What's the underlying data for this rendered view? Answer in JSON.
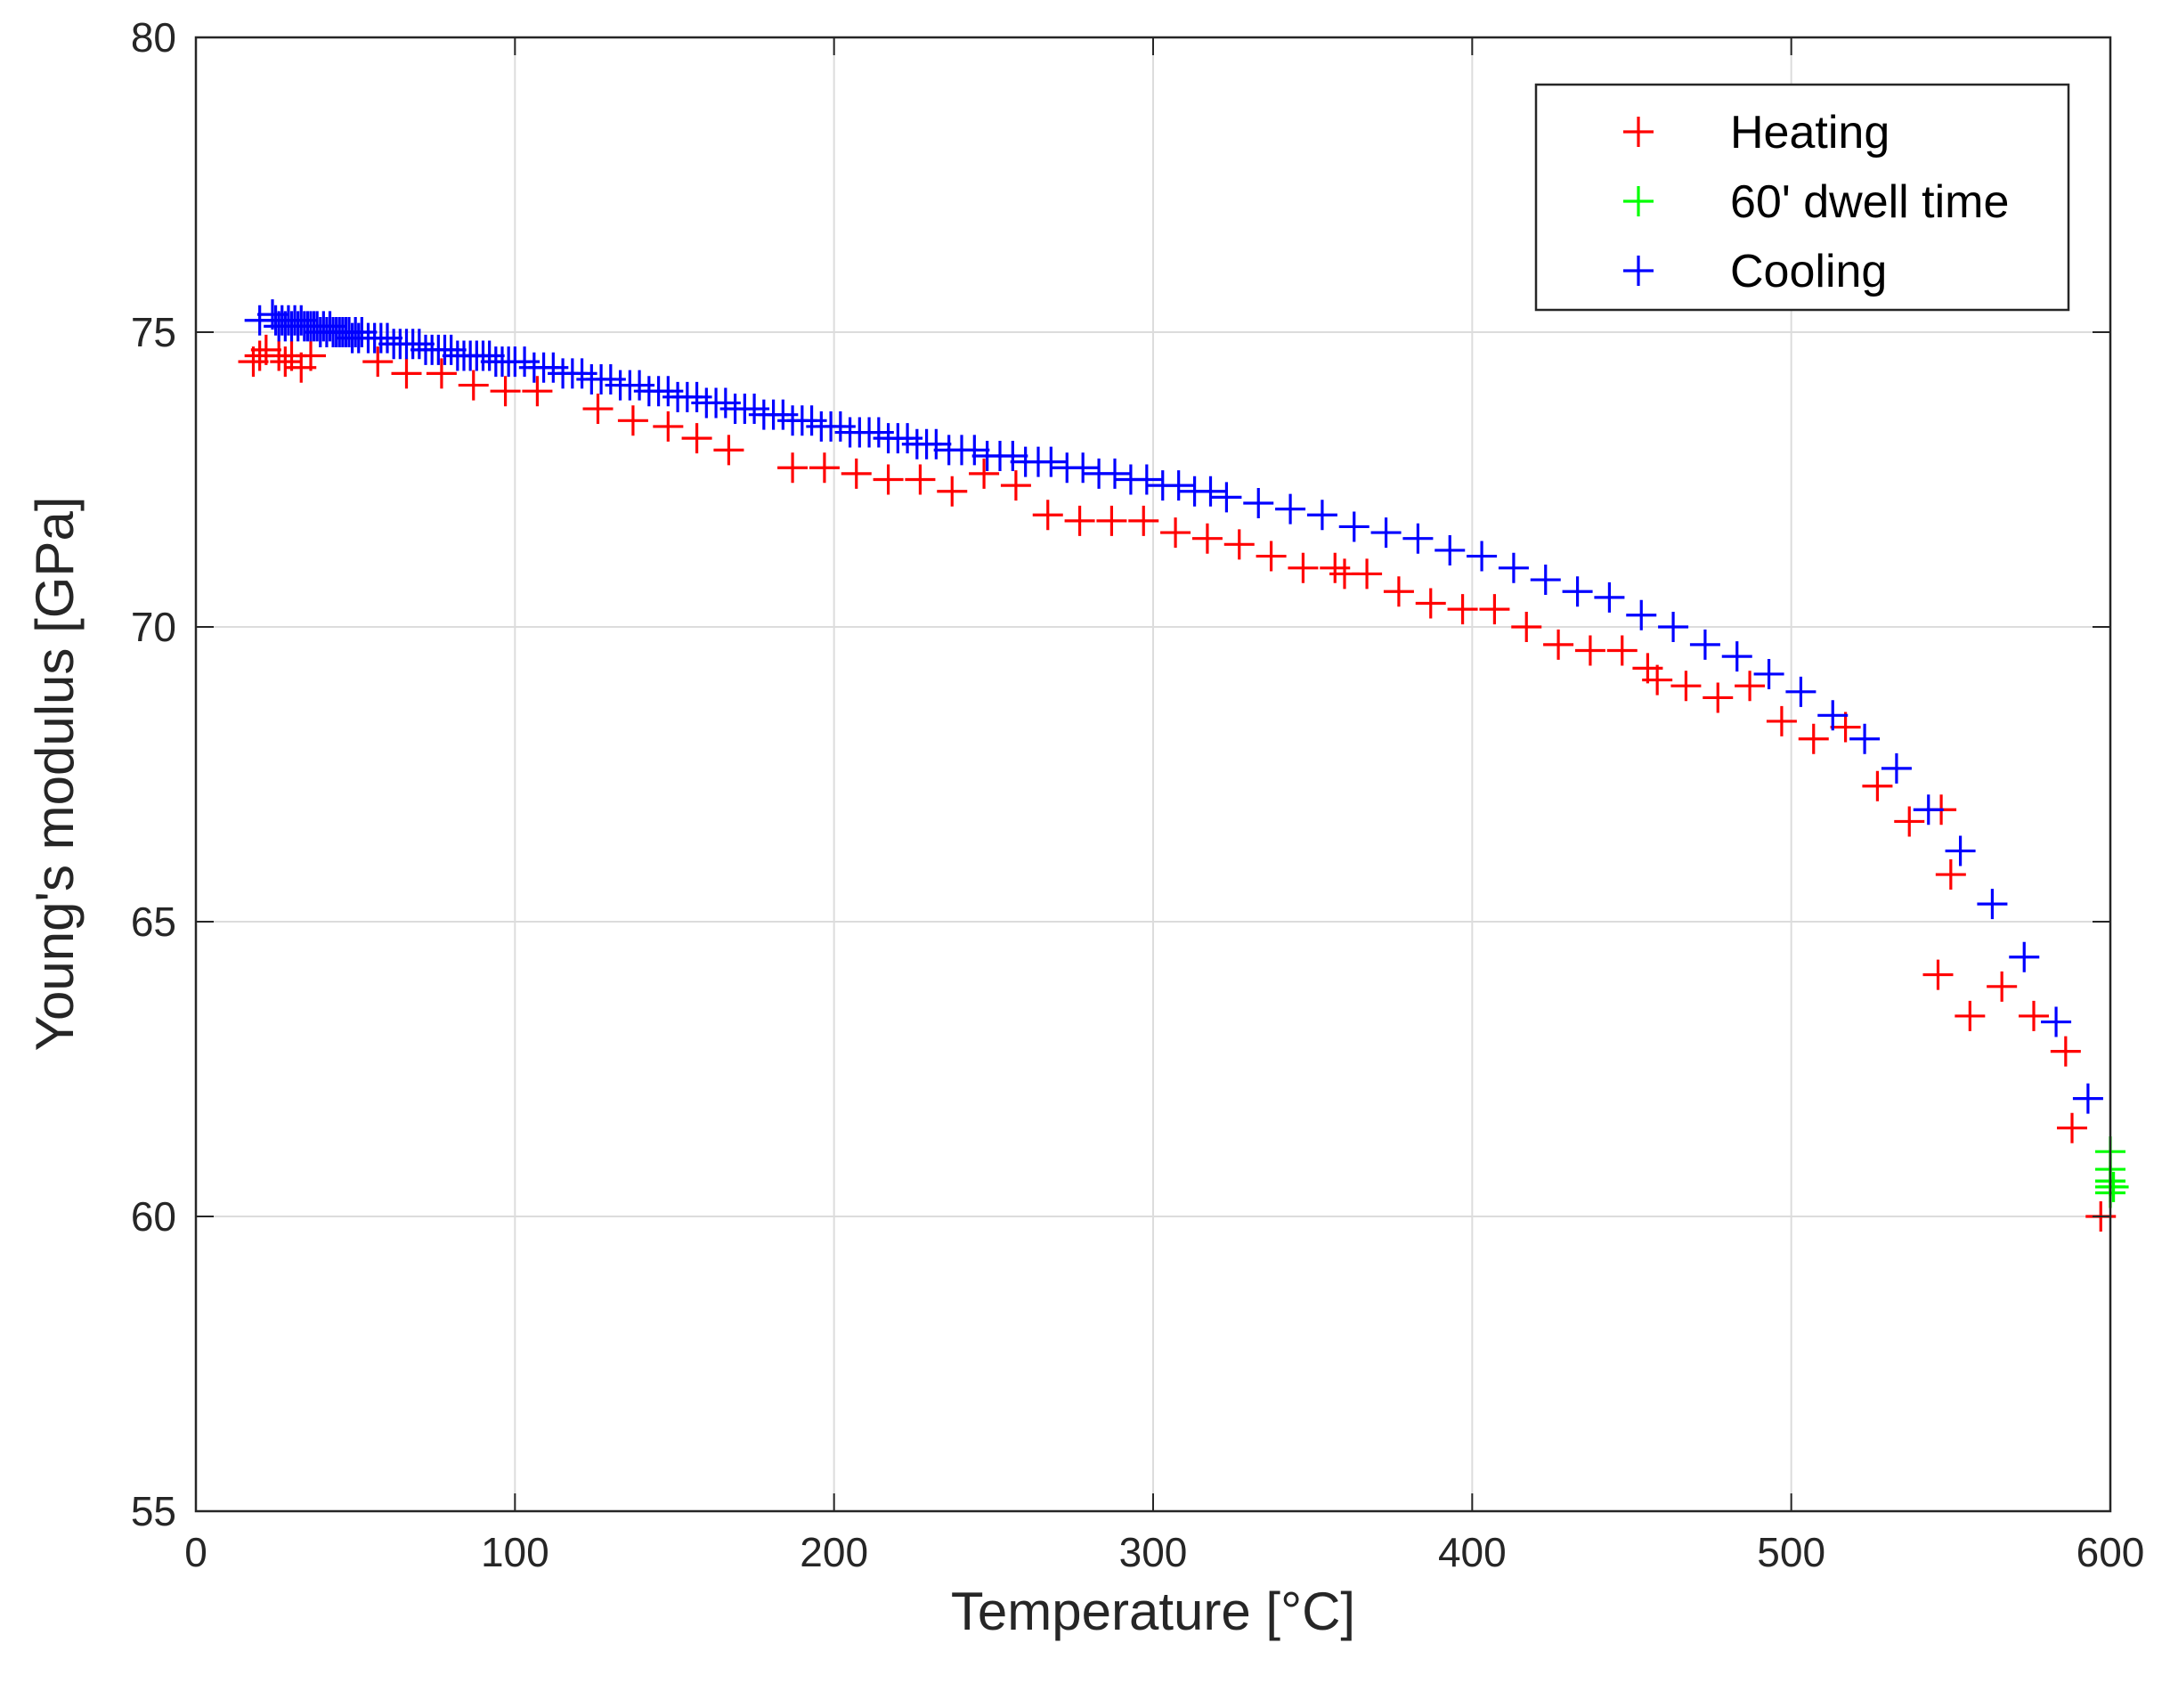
{
  "chart_data": {
    "type": "scatter",
    "title": "",
    "xlabel": "Temperature [°C]",
    "ylabel": "Young's modulus [GPa]",
    "xlim": [
      0,
      600
    ],
    "ylim": [
      55,
      80
    ],
    "xticks": [
      "0",
      "100",
      "200",
      "300",
      "400",
      "500",
      "600"
    ],
    "yticks": [
      "55",
      "60",
      "65",
      "70",
      "75",
      "80"
    ],
    "grid": true,
    "legend_position": "top-right",
    "marker": "+",
    "series": [
      {
        "name": "Heating",
        "color": "#ff0000",
        "points": [
          [
            18,
            74.5
          ],
          [
            20,
            74.6
          ],
          [
            22,
            74.7
          ],
          [
            26,
            74.6
          ],
          [
            28,
            74.5
          ],
          [
            30,
            74.6
          ],
          [
            33,
            74.4
          ],
          [
            36,
            74.6
          ],
          [
            57,
            74.5
          ],
          [
            66,
            74.3
          ],
          [
            77,
            74.3
          ],
          [
            87,
            74.1
          ],
          [
            97,
            74.0
          ],
          [
            107,
            74.0
          ],
          [
            126,
            73.7
          ],
          [
            137,
            73.5
          ],
          [
            148,
            73.4
          ],
          [
            157,
            73.2
          ],
          [
            167,
            73.0
          ],
          [
            187,
            72.7
          ],
          [
            197,
            72.7
          ],
          [
            207,
            72.6
          ],
          [
            217,
            72.5
          ],
          [
            227,
            72.5
          ],
          [
            237,
            72.3
          ],
          [
            247,
            72.6
          ],
          [
            257,
            72.4
          ],
          [
            267,
            71.9
          ],
          [
            277,
            71.8
          ],
          [
            287,
            71.8
          ],
          [
            297,
            71.8
          ],
          [
            307,
            71.6
          ],
          [
            317,
            71.5
          ],
          [
            327,
            71.4
          ],
          [
            337,
            71.2
          ],
          [
            347,
            71.0
          ],
          [
            357,
            71.0
          ],
          [
            360,
            70.9
          ],
          [
            367,
            70.9
          ],
          [
            377,
            70.6
          ],
          [
            387,
            70.4
          ],
          [
            397,
            70.3
          ],
          [
            407,
            70.3
          ],
          [
            417,
            70.0
          ],
          [
            427,
            69.7
          ],
          [
            437,
            69.6
          ],
          [
            447,
            69.6
          ],
          [
            455,
            69.3
          ],
          [
            458,
            69.1
          ],
          [
            467,
            69.0
          ],
          [
            477,
            68.8
          ],
          [
            487,
            69.0
          ],
          [
            497,
            68.4
          ],
          [
            507,
            68.1
          ],
          [
            517,
            68.3
          ],
          [
            527,
            67.3
          ],
          [
            537,
            66.7
          ],
          [
            547,
            66.9
          ],
          [
            550,
            65.8
          ],
          [
            546,
            64.1
          ],
          [
            556,
            63.4
          ],
          [
            566,
            63.9
          ],
          [
            576,
            63.4
          ],
          [
            586,
            62.8
          ],
          [
            588,
            61.5
          ],
          [
            597,
            60.0
          ]
        ]
      },
      {
        "name": "60' dwell time",
        "color": "#00ff00",
        "points": [
          [
            600,
            61.1
          ],
          [
            600,
            60.8
          ],
          [
            600,
            60.6
          ],
          [
            600,
            60.5
          ],
          [
            600,
            60.4
          ],
          [
            600,
            60.6
          ],
          [
            601,
            60.5
          ]
        ]
      },
      {
        "name": "Cooling",
        "color": "#0000ff",
        "points": [
          [
            20,
            75.2
          ],
          [
            24,
            75.3
          ],
          [
            25,
            75.2
          ],
          [
            26,
            75.1
          ],
          [
            27,
            75.2
          ],
          [
            28,
            75.1
          ],
          [
            29,
            75.2
          ],
          [
            30,
            75.1
          ],
          [
            31,
            75.2
          ],
          [
            32,
            75.1
          ],
          [
            33,
            75.2
          ],
          [
            34,
            75.1
          ],
          [
            35,
            75.1
          ],
          [
            36,
            75.1
          ],
          [
            37,
            75.1
          ],
          [
            38,
            75.1
          ],
          [
            39,
            75.0
          ],
          [
            40,
            75.1
          ],
          [
            41,
            75.0
          ],
          [
            42,
            75.1
          ],
          [
            43,
            75.0
          ],
          [
            44,
            75.0
          ],
          [
            45,
            75.0
          ],
          [
            46,
            75.0
          ],
          [
            47,
            75.0
          ],
          [
            48,
            75.0
          ],
          [
            49,
            74.9
          ],
          [
            50,
            75.0
          ],
          [
            51,
            74.9
          ],
          [
            52,
            75.0
          ],
          [
            54,
            74.9
          ],
          [
            56,
            74.9
          ],
          [
            58,
            74.9
          ],
          [
            60,
            74.9
          ],
          [
            62,
            74.8
          ],
          [
            64,
            74.8
          ],
          [
            66,
            74.8
          ],
          [
            68,
            74.8
          ],
          [
            70,
            74.8
          ],
          [
            72,
            74.7
          ],
          [
            74,
            74.7
          ],
          [
            76,
            74.7
          ],
          [
            78,
            74.7
          ],
          [
            80,
            74.7
          ],
          [
            82,
            74.6
          ],
          [
            84,
            74.6
          ],
          [
            86,
            74.6
          ],
          [
            88,
            74.6
          ],
          [
            90,
            74.6
          ],
          [
            92,
            74.6
          ],
          [
            94,
            74.5
          ],
          [
            96,
            74.5
          ],
          [
            98,
            74.5
          ],
          [
            100,
            74.5
          ],
          [
            103,
            74.5
          ],
          [
            106,
            74.4
          ],
          [
            109,
            74.4
          ],
          [
            112,
            74.4
          ],
          [
            115,
            74.3
          ],
          [
            118,
            74.3
          ],
          [
            121,
            74.3
          ],
          [
            124,
            74.2
          ],
          [
            127,
            74.2
          ],
          [
            130,
            74.2
          ],
          [
            133,
            74.1
          ],
          [
            136,
            74.1
          ],
          [
            139,
            74.1
          ],
          [
            142,
            74.0
          ],
          [
            145,
            74.0
          ],
          [
            148,
            74.0
          ],
          [
            151,
            73.9
          ],
          [
            154,
            73.9
          ],
          [
            157,
            73.9
          ],
          [
            160,
            73.8
          ],
          [
            163,
            73.8
          ],
          [
            166,
            73.8
          ],
          [
            169,
            73.7
          ],
          [
            172,
            73.7
          ],
          [
            175,
            73.7
          ],
          [
            178,
            73.6
          ],
          [
            181,
            73.6
          ],
          [
            184,
            73.6
          ],
          [
            187,
            73.5
          ],
          [
            190,
            73.5
          ],
          [
            193,
            73.5
          ],
          [
            196,
            73.4
          ],
          [
            199,
            73.4
          ],
          [
            202,
            73.4
          ],
          [
            205,
            73.3
          ],
          [
            208,
            73.3
          ],
          [
            211,
            73.3
          ],
          [
            214,
            73.3
          ],
          [
            217,
            73.2
          ],
          [
            220,
            73.2
          ],
          [
            223,
            73.2
          ],
          [
            226,
            73.1
          ],
          [
            229,
            73.1
          ],
          [
            232,
            73.1
          ],
          [
            236,
            73.0
          ],
          [
            240,
            73.0
          ],
          [
            244,
            73.0
          ],
          [
            248,
            72.9
          ],
          [
            252,
            72.9
          ],
          [
            256,
            72.9
          ],
          [
            260,
            72.8
          ],
          [
            264,
            72.8
          ],
          [
            268,
            72.8
          ],
          [
            273,
            72.7
          ],
          [
            278,
            72.7
          ],
          [
            283,
            72.6
          ],
          [
            288,
            72.6
          ],
          [
            293,
            72.5
          ],
          [
            298,
            72.5
          ],
          [
            303,
            72.4
          ],
          [
            308,
            72.4
          ],
          [
            313,
            72.3
          ],
          [
            318,
            72.3
          ],
          [
            323,
            72.2
          ],
          [
            333,
            72.1
          ],
          [
            343,
            72.0
          ],
          [
            353,
            71.9
          ],
          [
            363,
            71.7
          ],
          [
            373,
            71.6
          ],
          [
            383,
            71.5
          ],
          [
            393,
            71.3
          ],
          [
            403,
            71.2
          ],
          [
            413,
            71.0
          ],
          [
            423,
            70.8
          ],
          [
            433,
            70.6
          ],
          [
            443,
            70.5
          ],
          [
            453,
            70.2
          ],
          [
            463,
            70.0
          ],
          [
            473,
            69.7
          ],
          [
            483,
            69.5
          ],
          [
            493,
            69.2
          ],
          [
            503,
            68.9
          ],
          [
            513,
            68.5
          ],
          [
            523,
            68.1
          ],
          [
            533,
            67.6
          ],
          [
            543,
            66.9
          ],
          [
            553,
            66.2
          ],
          [
            563,
            65.3
          ],
          [
            573,
            64.4
          ],
          [
            583,
            63.3
          ],
          [
            593,
            62.0
          ]
        ]
      }
    ]
  }
}
